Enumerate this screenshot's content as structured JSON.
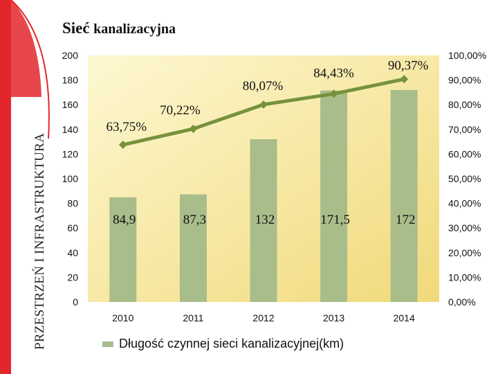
{
  "slide": {
    "title_part1": "Sieć",
    "title_part2": "kanalizacyjna",
    "section_title": "PRZESTRZEŃ I INFRASTRUKTURA"
  },
  "colors": {
    "bar": "#a9bd8a",
    "line": "#76923c",
    "plot_bg_light": "#fdf8d2",
    "plot_bg_dark": "#f1d97a",
    "accent_red": "#e3262b"
  },
  "chart_data": {
    "type": "bar+line",
    "categories": [
      "2010",
      "2011",
      "2012",
      "2013",
      "2014"
    ],
    "series": [
      {
        "name": "Długość czynnej sieci kanalizacyjnej(km)",
        "type": "bar",
        "axis": "left",
        "values": [
          84.9,
          87.3,
          132,
          171.5,
          172
        ],
        "labels": [
          "84,9",
          "87,3",
          "132",
          "171,5",
          "172"
        ]
      },
      {
        "name": "",
        "type": "line",
        "axis": "right",
        "values": [
          63.75,
          70.22,
          80.07,
          84.43,
          90.37
        ],
        "labels": [
          "63,75%",
          "70,22%",
          "80,07%",
          "84,43%",
          "90,37%"
        ]
      }
    ],
    "y_left": {
      "min": 0,
      "max": 200,
      "ticks": [
        "0",
        "20",
        "40",
        "60",
        "80",
        "100",
        "120",
        "140",
        "160",
        "180",
        "200"
      ]
    },
    "y_right": {
      "min": 0,
      "max": 100,
      "ticks": [
        "0,00%",
        "10,00%",
        "20,00%",
        "30,00%",
        "40,00%",
        "50,00%",
        "60,00%",
        "70,00%",
        "80,00%",
        "90,00%",
        "100,00%"
      ]
    },
    "legend": {
      "position": "bottom",
      "label": "Długość czynnej sieci kanalizacyjnej(km)"
    },
    "grid": false
  }
}
